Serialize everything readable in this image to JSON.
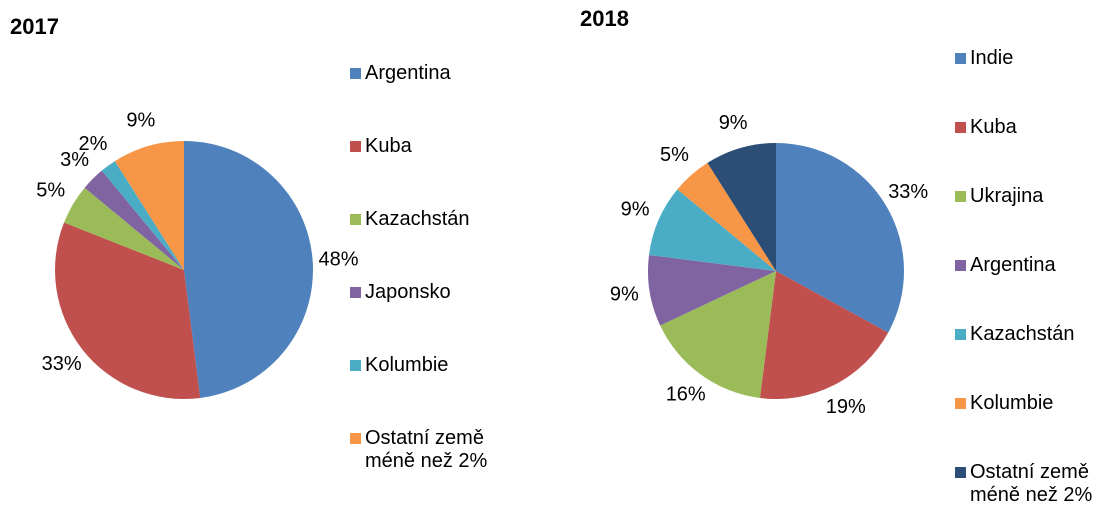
{
  "chart_data": [
    {
      "type": "pie",
      "title": "2017",
      "categories": [
        "Argentina",
        "Kuba",
        "Kazachstán",
        "Japonsko",
        "Kolumbie",
        "Ostatní země méně než 2%"
      ],
      "values": [
        48,
        33,
        5,
        3,
        2,
        9
      ],
      "value_labels": [
        "48%",
        "33%",
        "5%",
        "3%",
        "2%",
        "9%"
      ],
      "colors": [
        "#4f81bd",
        "#c0504d",
        "#9bbb59",
        "#8064a2",
        "#4bacc6",
        "#f79646"
      ],
      "legend": "right"
    },
    {
      "type": "pie",
      "title": "2018",
      "categories": [
        "Indie",
        "Kuba",
        "Ukrajina",
        "Argentina",
        "Kazachstán",
        "Kolumbie",
        "Ostatní země méně než 2%"
      ],
      "values": [
        33,
        19,
        16,
        9,
        9,
        5,
        9
      ],
      "value_labels": [
        "33%",
        "19%",
        "16%",
        "9%",
        "9%",
        "5%",
        "9%"
      ],
      "colors": [
        "#4f81bd",
        "#c0504d",
        "#9bbb59",
        "#8064a2",
        "#4bacc6",
        "#f79646",
        "#2c4d75"
      ],
      "legend": "right"
    }
  ]
}
